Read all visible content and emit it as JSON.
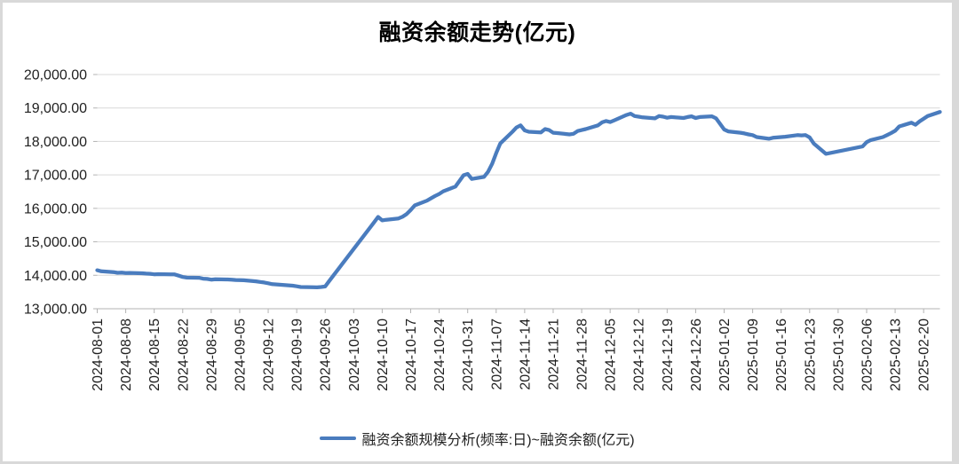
{
  "colors": {
    "line": "#4a7cbe",
    "grid": "#d9d9d9",
    "axis": "#b3b3b3",
    "tick": "#b3b3b3",
    "label": "#1f1f1f",
    "frame": "#d9d9d9"
  },
  "legend": {
    "label": "融资余额规模分析(频率:日)~融资余额(亿元)"
  },
  "chart_data": {
    "type": "line",
    "title": "融资余额走势(亿元)",
    "xlabel": "",
    "ylabel": "",
    "x_axis_type": "date",
    "x_range": [
      "2024-08-01",
      "2025-02-24"
    ],
    "ylim": [
      13000,
      20000
    ],
    "ytick_interval": 1000,
    "ytick_labels": [
      "13,000.00",
      "14,000.00",
      "15,000.00",
      "16,000.00",
      "17,000.00",
      "18,000.00",
      "19,000.00",
      "20,000.00"
    ],
    "xtick_labels": [
      "2024-08-01",
      "2024-08-08",
      "2024-08-15",
      "2024-08-22",
      "2024-08-29",
      "2024-09-05",
      "2024-09-12",
      "2024-09-19",
      "2024-09-26",
      "2024-10-03",
      "2024-10-10",
      "2024-10-17",
      "2024-10-24",
      "2024-10-31",
      "2024-11-07",
      "2024-11-14",
      "2024-11-21",
      "2024-11-28",
      "2024-12-05",
      "2024-12-12",
      "2024-12-19",
      "2024-12-26",
      "2025-01-02",
      "2025-01-09",
      "2025-01-16",
      "2025-01-23",
      "2025-01-30",
      "2025-02-06",
      "2025-02-13",
      "2025-02-20"
    ],
    "grid": "horizontal",
    "legend_position": "bottom",
    "series": [
      {
        "name": "融资余额规模分析(频率:日)~融资余额(亿元)",
        "color": "#4a7cbe",
        "points": [
          [
            "2024-08-01",
            14150
          ],
          [
            "2024-08-02",
            14120
          ],
          [
            "2024-08-05",
            14095
          ],
          [
            "2024-08-06",
            14075
          ],
          [
            "2024-08-07",
            14080
          ],
          [
            "2024-08-08",
            14065
          ],
          [
            "2024-08-09",
            14070
          ],
          [
            "2024-08-12",
            14060
          ],
          [
            "2024-08-13",
            14050
          ],
          [
            "2024-08-14",
            14045
          ],
          [
            "2024-08-15",
            14030
          ],
          [
            "2024-08-16",
            14035
          ],
          [
            "2024-08-19",
            14030
          ],
          [
            "2024-08-20",
            14025
          ],
          [
            "2024-08-21",
            13990
          ],
          [
            "2024-08-22",
            13950
          ],
          [
            "2024-08-23",
            13930
          ],
          [
            "2024-08-26",
            13925
          ],
          [
            "2024-08-27",
            13900
          ],
          [
            "2024-08-28",
            13890
          ],
          [
            "2024-08-29",
            13870
          ],
          [
            "2024-08-30",
            13880
          ],
          [
            "2024-09-02",
            13875
          ],
          [
            "2024-09-03",
            13870
          ],
          [
            "2024-09-04",
            13860
          ],
          [
            "2024-09-05",
            13855
          ],
          [
            "2024-09-06",
            13850
          ],
          [
            "2024-09-09",
            13820
          ],
          [
            "2024-09-10",
            13800
          ],
          [
            "2024-09-11",
            13785
          ],
          [
            "2024-09-12",
            13760
          ],
          [
            "2024-09-13",
            13735
          ],
          [
            "2024-09-18",
            13690
          ],
          [
            "2024-09-19",
            13670
          ],
          [
            "2024-09-20",
            13650
          ],
          [
            "2024-09-23",
            13645
          ],
          [
            "2024-09-24",
            13640
          ],
          [
            "2024-09-25",
            13650
          ],
          [
            "2024-09-26",
            13665
          ],
          [
            "2024-09-27",
            13830
          ],
          [
            "2024-09-30",
            14310
          ],
          [
            "2024-10-08",
            15580
          ],
          [
            "2024-10-09",
            15745
          ],
          [
            "2024-10-10",
            15640
          ],
          [
            "2024-10-11",
            15660
          ],
          [
            "2024-10-14",
            15700
          ],
          [
            "2024-10-15",
            15750
          ],
          [
            "2024-10-16",
            15830
          ],
          [
            "2024-10-17",
            15950
          ],
          [
            "2024-10-18",
            16090
          ],
          [
            "2024-10-21",
            16230
          ],
          [
            "2024-10-22",
            16300
          ],
          [
            "2024-10-23",
            16370
          ],
          [
            "2024-10-24",
            16430
          ],
          [
            "2024-10-25",
            16510
          ],
          [
            "2024-10-28",
            16650
          ],
          [
            "2024-10-29",
            16820
          ],
          [
            "2024-10-30",
            16990
          ],
          [
            "2024-10-31",
            17030
          ],
          [
            "2024-11-01",
            16880
          ],
          [
            "2024-11-04",
            16940
          ],
          [
            "2024-11-05",
            17090
          ],
          [
            "2024-11-06",
            17330
          ],
          [
            "2024-11-07",
            17650
          ],
          [
            "2024-11-08",
            17940
          ],
          [
            "2024-11-11",
            18290
          ],
          [
            "2024-11-12",
            18420
          ],
          [
            "2024-11-13",
            18480
          ],
          [
            "2024-11-14",
            18330
          ],
          [
            "2024-11-15",
            18290
          ],
          [
            "2024-11-18",
            18270
          ],
          [
            "2024-11-19",
            18370
          ],
          [
            "2024-11-20",
            18340
          ],
          [
            "2024-11-21",
            18260
          ],
          [
            "2024-11-22",
            18250
          ],
          [
            "2024-11-25",
            18210
          ],
          [
            "2024-11-26",
            18230
          ],
          [
            "2024-11-27",
            18310
          ],
          [
            "2024-11-28",
            18340
          ],
          [
            "2024-11-29",
            18370
          ],
          [
            "2024-12-02",
            18480
          ],
          [
            "2024-12-03",
            18570
          ],
          [
            "2024-12-04",
            18610
          ],
          [
            "2024-12-05",
            18580
          ],
          [
            "2024-12-06",
            18630
          ],
          [
            "2024-12-09",
            18790
          ],
          [
            "2024-12-10",
            18830
          ],
          [
            "2024-12-11",
            18760
          ],
          [
            "2024-12-12",
            18740
          ],
          [
            "2024-12-13",
            18720
          ],
          [
            "2024-12-16",
            18690
          ],
          [
            "2024-12-17",
            18760
          ],
          [
            "2024-12-18",
            18740
          ],
          [
            "2024-12-19",
            18710
          ],
          [
            "2024-12-20",
            18730
          ],
          [
            "2024-12-23",
            18700
          ],
          [
            "2024-12-24",
            18730
          ],
          [
            "2024-12-25",
            18750
          ],
          [
            "2024-12-26",
            18700
          ],
          [
            "2024-12-27",
            18730
          ],
          [
            "2024-12-30",
            18750
          ],
          [
            "2024-12-31",
            18690
          ],
          [
            "2025-01-02",
            18360
          ],
          [
            "2025-01-03",
            18300
          ],
          [
            "2025-01-06",
            18260
          ],
          [
            "2025-01-07",
            18240
          ],
          [
            "2025-01-08",
            18210
          ],
          [
            "2025-01-09",
            18190
          ],
          [
            "2025-01-10",
            18130
          ],
          [
            "2025-01-13",
            18080
          ],
          [
            "2025-01-14",
            18110
          ],
          [
            "2025-01-15",
            18120
          ],
          [
            "2025-01-16",
            18130
          ],
          [
            "2025-01-17",
            18140
          ],
          [
            "2025-01-20",
            18190
          ],
          [
            "2025-01-21",
            18180
          ],
          [
            "2025-01-22",
            18190
          ],
          [
            "2025-01-23",
            18120
          ],
          [
            "2025-01-24",
            17940
          ],
          [
            "2025-01-27",
            17630
          ],
          [
            "2025-02-05",
            17850
          ],
          [
            "2025-02-06",
            17980
          ],
          [
            "2025-02-07",
            18040
          ],
          [
            "2025-02-10",
            18130
          ],
          [
            "2025-02-11",
            18190
          ],
          [
            "2025-02-12",
            18250
          ],
          [
            "2025-02-13",
            18320
          ],
          [
            "2025-02-14",
            18450
          ],
          [
            "2025-02-17",
            18560
          ],
          [
            "2025-02-18",
            18500
          ],
          [
            "2025-02-19",
            18600
          ],
          [
            "2025-02-20",
            18680
          ],
          [
            "2025-02-21",
            18760
          ],
          [
            "2025-02-24",
            18880
          ]
        ]
      }
    ]
  }
}
